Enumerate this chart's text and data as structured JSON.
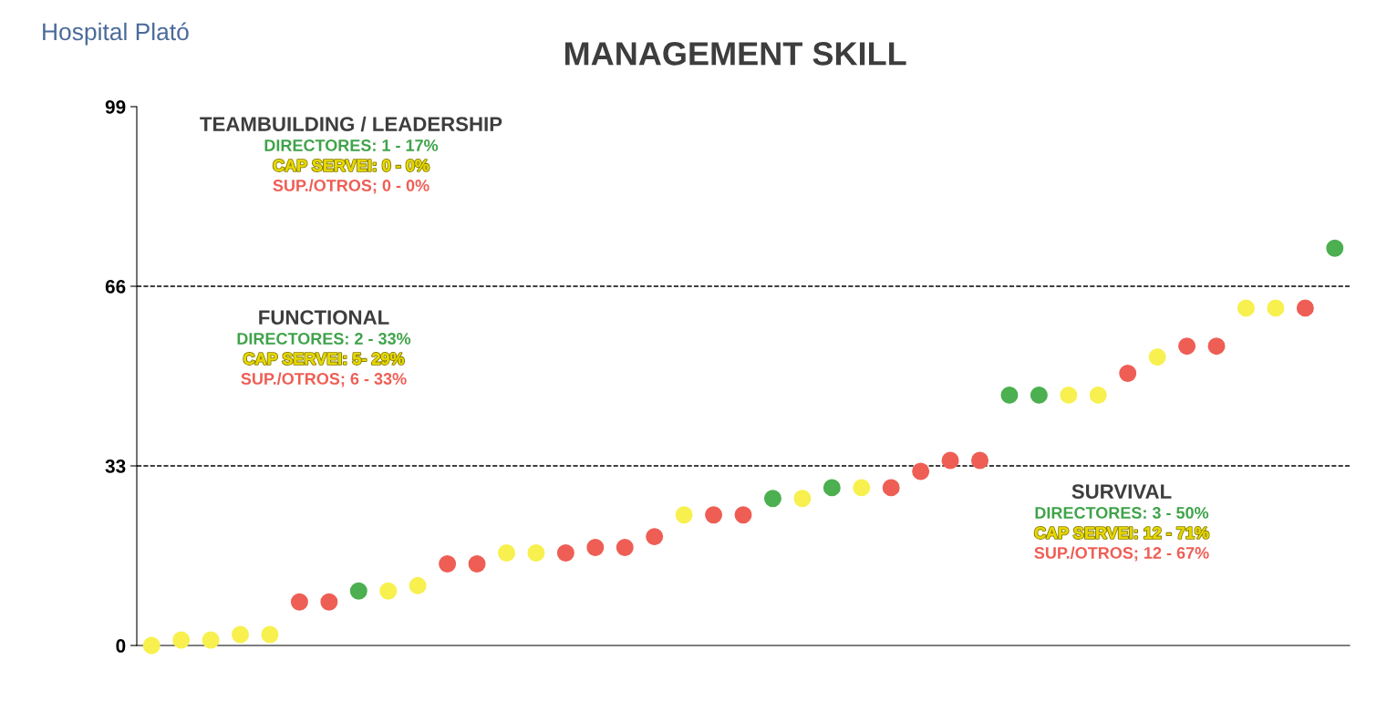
{
  "chart_data": {
    "type": "scatter",
    "title": "MANAGEMENT SKILL",
    "categories": [
      null,
      null,
      null,
      null,
      null,
      null,
      null,
      null,
      null,
      null,
      null,
      null,
      null,
      null,
      null,
      null,
      null,
      null,
      null,
      null,
      null,
      null,
      null,
      null,
      null,
      null,
      null,
      null,
      null,
      null,
      null,
      null,
      null,
      null,
      null,
      null,
      null,
      null,
      null,
      null,
      null
    ],
    "values": [
      0,
      1,
      1,
      2,
      2,
      8,
      8,
      10,
      10,
      11,
      15,
      15,
      17,
      17,
      17,
      18,
      18,
      20,
      24,
      24,
      24,
      27,
      27,
      29,
      29,
      29,
      32,
      34,
      34,
      46,
      46,
      46,
      46,
      50,
      53,
      55,
      55,
      62,
      62,
      62,
      73
    ],
    "colors": [
      "#f7f04e",
      "#f7f04e",
      "#f7f04e",
      "#f7f04e",
      "#f7f04e",
      "#ee5e55",
      "#ee5e55",
      "#4caf50",
      "#f7f04e",
      "#f7f04e",
      "#ee5e55",
      "#ee5e55",
      "#f7f04e",
      "#f7f04e",
      "#ee5e55",
      "#ee5e55",
      "#ee5e55",
      "#ee5e55",
      "#f7f04e",
      "#ee5e55",
      "#ee5e55",
      "#4caf50",
      "#f7f04e",
      "#4caf50",
      "#f7f04e",
      "#ee5e55",
      "#ee5e55",
      "#ee5e55",
      "#ee5e55",
      "#4caf50",
      "#4caf50",
      "#f7f04e",
      "#f7f04e",
      "#ee5e55",
      "#f7f04e",
      "#ee5e55",
      "#ee5e55",
      "#f7f04e",
      "#f7f04e",
      "#ee5e55",
      "#4caf50"
    ],
    "ylim": [
      0,
      99
    ],
    "yticks": [
      0,
      33,
      66,
      99
    ],
    "tick_labels": "y",
    "grid": false,
    "legend": false,
    "marker": "circle",
    "ref_lines": [
      {
        "axis": "y",
        "value": 33,
        "line_style": "dashed",
        "color": "#000000"
      },
      {
        "axis": "y",
        "value": 66,
        "line_style": "dashed",
        "color": "#000000"
      }
    ],
    "annotations": [
      "Hospital Plató",
      "TEAMBUILDING / LEADERSHIP",
      "DIRECTORES: 1 - 17%",
      "CAP SERVEI: 0 - 0%",
      "SUP./OTROS; 0 - 0%",
      "FUNCTIONAL",
      "DIRECTORES: 2 - 33%",
      "CAP SERVEI: 5- 29%",
      "SUP./OTROS; 6 - 33%",
      "SURVIVAL",
      "DIRECTORES: 3 - 50%",
      "CAP SERVEI: 12 - 71%",
      "SUP./OTROS; 12 - 67%"
    ]
  }
}
